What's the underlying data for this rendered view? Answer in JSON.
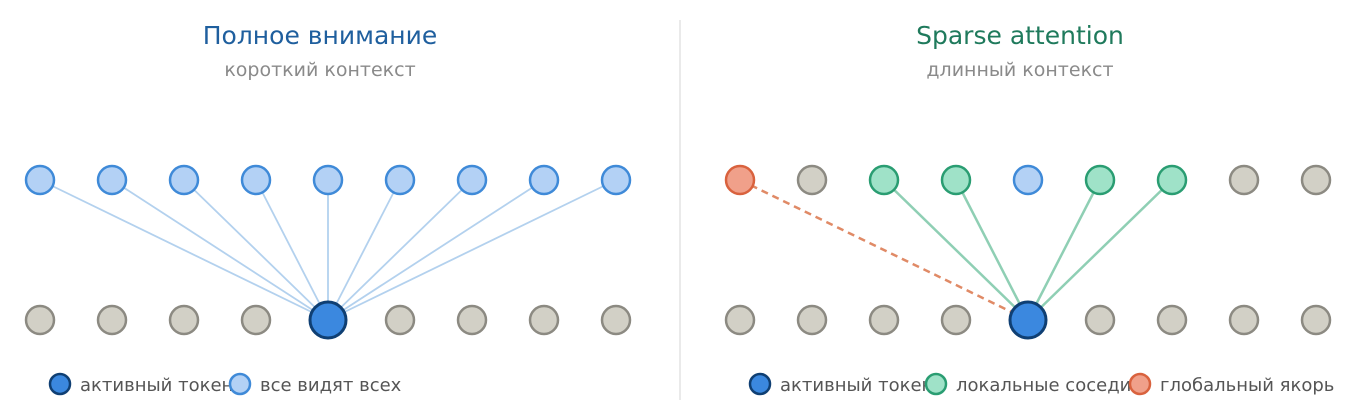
{
  "colors": {
    "left_title": "#1f5f9e",
    "right_title": "#1f7a5c",
    "node_gray_fill": "#d2d0c6",
    "node_gray_stroke": "#8c8a82",
    "node_blue_fill": "#b3d1f5",
    "node_blue_stroke": "#3f8ad8",
    "active_fill": "#3b88df",
    "active_stroke": "#0f3f73",
    "local_fill": "#9fe2c8",
    "local_stroke": "#2a9d72",
    "global_fill": "#f0a08a",
    "global_stroke": "#d9623e",
    "edge_full": "#b3d1ee",
    "edge_local": "#8fcfb4",
    "edge_global": "#e08a66",
    "divider": "#e4e4e4"
  },
  "panels": [
    {
      "id": "full",
      "title": "Полное внимание",
      "subtitle": "короткий контекст",
      "top_tokens": [
        "neighbor",
        "neighbor",
        "neighbor",
        "neighbor",
        "neighbor",
        "neighbor",
        "neighbor",
        "neighbor",
        "neighbor"
      ],
      "bottom_tokens": [
        "gray",
        "gray",
        "gray",
        "gray",
        "active",
        "gray",
        "gray",
        "gray",
        "gray"
      ],
      "edges": [
        {
          "from": 0,
          "kind": "full"
        },
        {
          "from": 1,
          "kind": "full"
        },
        {
          "from": 2,
          "kind": "full"
        },
        {
          "from": 3,
          "kind": "full"
        },
        {
          "from": 4,
          "kind": "full"
        },
        {
          "from": 5,
          "kind": "full"
        },
        {
          "from": 6,
          "kind": "full"
        },
        {
          "from": 7,
          "kind": "full"
        },
        {
          "from": 8,
          "kind": "full"
        }
      ],
      "active_index": 4,
      "legend": [
        {
          "kind": "active",
          "label": "активный токен"
        },
        {
          "kind": "neighbor",
          "label": "все видят всех"
        }
      ]
    },
    {
      "id": "sparse",
      "title": "Sparse attention",
      "subtitle": "длинный контекст",
      "top_tokens": [
        "global",
        "gray",
        "local",
        "local",
        "self",
        "local",
        "local",
        "gray",
        "gray"
      ],
      "bottom_tokens": [
        "gray",
        "gray",
        "gray",
        "gray",
        "active",
        "gray",
        "gray",
        "gray",
        "gray"
      ],
      "edges": [
        {
          "from": 0,
          "kind": "global"
        },
        {
          "from": 2,
          "kind": "local"
        },
        {
          "from": 3,
          "kind": "local"
        },
        {
          "from": 5,
          "kind": "local"
        },
        {
          "from": 6,
          "kind": "local"
        }
      ],
      "active_index": 4,
      "legend": [
        {
          "kind": "active",
          "label": "активный токен"
        },
        {
          "kind": "local",
          "label": "локальные соседи"
        },
        {
          "kind": "global",
          "label": "глобальный якорь"
        }
      ]
    }
  ]
}
